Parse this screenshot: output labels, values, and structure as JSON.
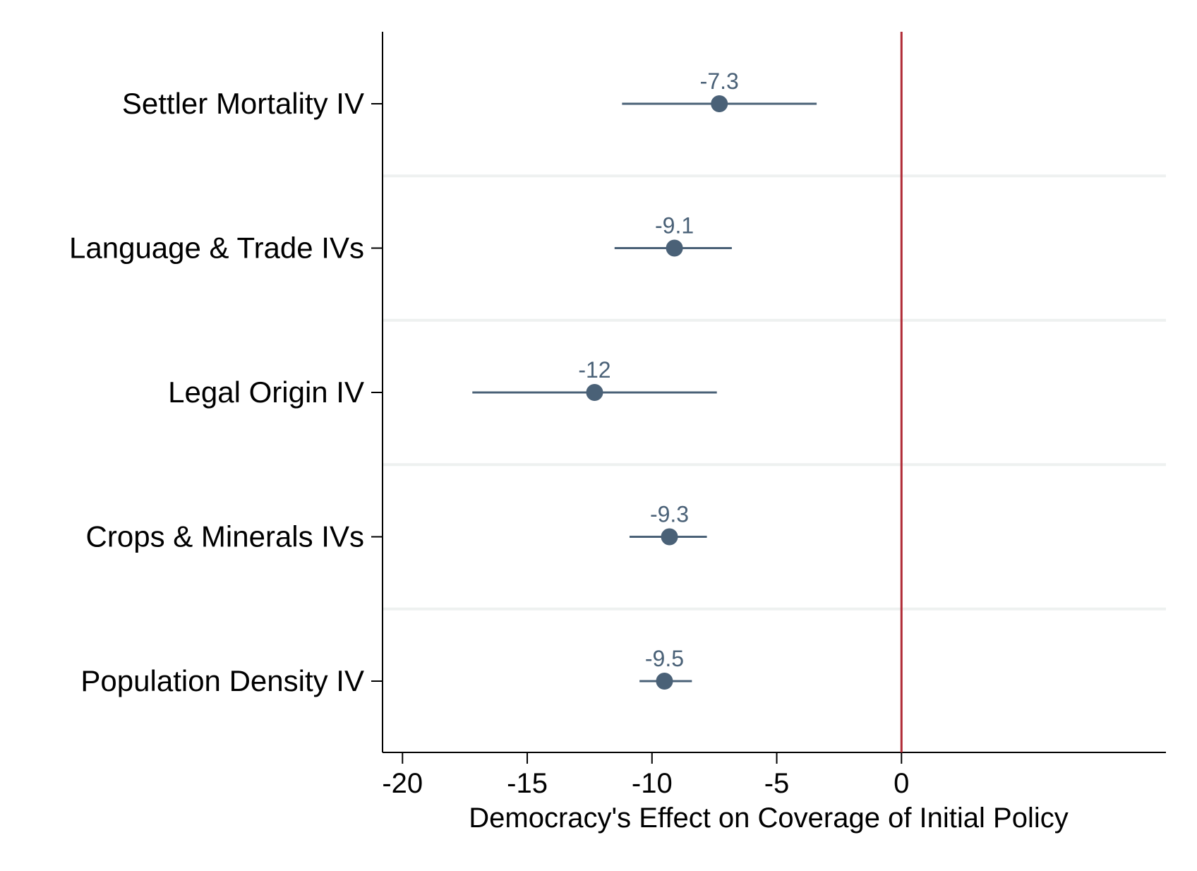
{
  "chart_data": {
    "type": "scatter",
    "orientation": "horizontal",
    "title": "",
    "xlabel": "Democracy's Effect on Coverage of Initial Policy",
    "ylabel": "",
    "xlim": [
      -20.8,
      10.6
    ],
    "xticks": [
      -20,
      -15,
      -10,
      -5,
      0
    ],
    "xtick_labels": [
      "-20",
      "-15",
      "-10",
      "-5",
      "0"
    ],
    "reference_line_x": 0,
    "grid": "horizontal separators between rows",
    "categories": [
      "Settler Mortality IV",
      "Language & Trade IVs",
      "Legal Origin IV",
      "Crops & Minerals IVs",
      "Population Density IV"
    ],
    "series": [
      {
        "values": [
          -7.3,
          -9.1,
          -12.3,
          -9.3,
          -9.5
        ],
        "ci_low": [
          -11.2,
          -11.5,
          -17.2,
          -10.9,
          -10.5
        ],
        "ci_high": [
          -3.4,
          -6.8,
          -7.4,
          -7.8,
          -8.4
        ],
        "labels": [
          "-7.3",
          "-9.1",
          "-12",
          "-9.3",
          "-9.5"
        ]
      }
    ],
    "colors": {
      "marker": "#4a6177",
      "ci_line": "#4a6177",
      "label": "#4a6177",
      "reference_line": "#b02a35",
      "separator": "#eef1f0",
      "axis": "#000000"
    }
  }
}
